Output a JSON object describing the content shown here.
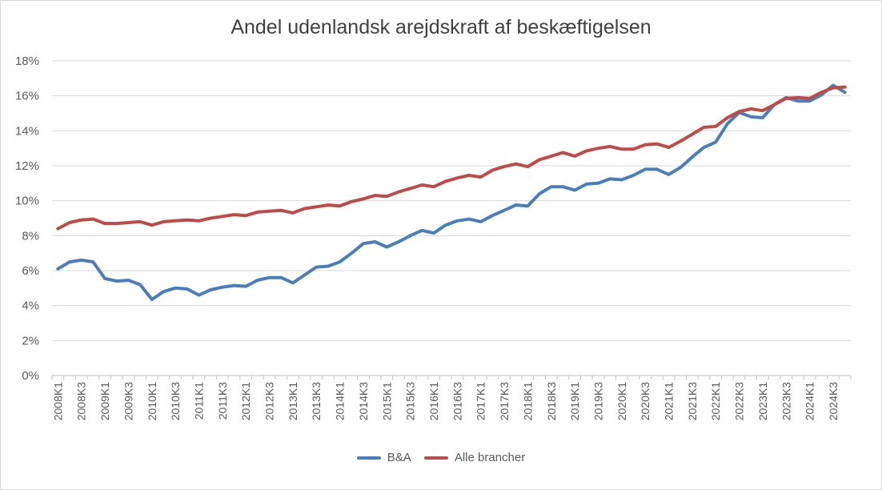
{
  "chart_data": {
    "type": "line",
    "title": "Andel udenlandsk arejdskraft af beskæftigelsen",
    "xlabel": "",
    "ylabel": "",
    "ylim": [
      0,
      18
    ],
    "yticks": [
      "0%",
      "2%",
      "4%",
      "6%",
      "8%",
      "10%",
      "12%",
      "14%",
      "16%",
      "18%"
    ],
    "grid": true,
    "legend_position": "bottom",
    "x": [
      "2008K1",
      "2008K2",
      "2008K3",
      "2008K4",
      "2009K1",
      "2009K2",
      "2009K3",
      "2009K4",
      "2010K1",
      "2010K2",
      "2010K3",
      "2010K4",
      "2011K1",
      "2011K2",
      "2011K3",
      "2011K4",
      "2012K1",
      "2012K2",
      "2012K3",
      "2012K4",
      "2013K1",
      "2013K2",
      "2013K3",
      "2013K4",
      "2014K1",
      "2014K2",
      "2014K3",
      "2014K4",
      "2015K1",
      "2015K2",
      "2015K3",
      "2015K4",
      "2016K1",
      "2016K2",
      "2016K3",
      "2016K4",
      "2017K1",
      "2017K2",
      "2017K3",
      "2017K4",
      "2018K1",
      "2018K2",
      "2018K3",
      "2018K4",
      "2019K1",
      "2019K2",
      "2019K3",
      "2019K4",
      "2020K1",
      "2020K2",
      "2020K3",
      "2020K4",
      "2021K1",
      "2021K2",
      "2021K3",
      "2021K4",
      "2022K1",
      "2022K2",
      "2022K3",
      "2022K4",
      "2023K1",
      "2023K2",
      "2023K3",
      "2023K4",
      "2024K1",
      "2024K2",
      "2024K3",
      "2024K4"
    ],
    "xtick_labels": [
      "2008K1",
      "2008K3",
      "2009K1",
      "2009K3",
      "2010K1",
      "2010K3",
      "2011K1",
      "2011K3",
      "2012K1",
      "2012K3",
      "2013K1",
      "2013K3",
      "2014K1",
      "2014K3",
      "2015K1",
      "2015K3",
      "2016K1",
      "2016K3",
      "2017K1",
      "2017K3",
      "2018K1",
      "2018K3",
      "2019K1",
      "2019K3",
      "2020K1",
      "2020K3",
      "2021K1",
      "2021K3",
      "2022K1",
      "2022K3",
      "2023K1",
      "2023K3",
      "2024K1",
      "2024K3"
    ],
    "series": [
      {
        "name": "B&A",
        "color": "#4a7ebb",
        "values": [
          6.1,
          6.5,
          6.6,
          6.5,
          5.55,
          5.4,
          5.45,
          5.2,
          4.35,
          4.8,
          5.0,
          4.95,
          4.6,
          4.9,
          5.05,
          5.15,
          5.1,
          5.45,
          5.6,
          5.6,
          5.3,
          5.75,
          6.2,
          6.25,
          6.5,
          7.0,
          7.55,
          7.65,
          7.35,
          7.65,
          8.0,
          8.3,
          8.15,
          8.6,
          8.85,
          8.95,
          8.8,
          9.15,
          9.45,
          9.75,
          9.7,
          10.4,
          10.8,
          10.8,
          10.6,
          10.95,
          11.0,
          11.25,
          11.2,
          11.45,
          11.8,
          11.8,
          11.5,
          11.9,
          12.5,
          13.05,
          13.35,
          14.4,
          15.05,
          14.8,
          14.75,
          15.5,
          15.9,
          15.7,
          15.7,
          16.05,
          16.6,
          16.2
        ]
      },
      {
        "name": "Alle brancher",
        "color": "#be4b48",
        "values": [
          8.4,
          8.75,
          8.9,
          8.95,
          8.7,
          8.7,
          8.75,
          8.8,
          8.6,
          8.8,
          8.85,
          8.9,
          8.85,
          9.0,
          9.1,
          9.2,
          9.15,
          9.35,
          9.4,
          9.45,
          9.3,
          9.55,
          9.65,
          9.75,
          9.7,
          9.95,
          10.1,
          10.3,
          10.25,
          10.5,
          10.7,
          10.9,
          10.8,
          11.1,
          11.3,
          11.45,
          11.35,
          11.75,
          11.95,
          12.1,
          11.95,
          12.35,
          12.55,
          12.75,
          12.55,
          12.85,
          13.0,
          13.1,
          12.95,
          12.95,
          13.2,
          13.25,
          13.05,
          13.4,
          13.8,
          14.2,
          14.25,
          14.75,
          15.1,
          15.25,
          15.15,
          15.5,
          15.85,
          15.9,
          15.85,
          16.2,
          16.45,
          16.5
        ]
      }
    ]
  }
}
